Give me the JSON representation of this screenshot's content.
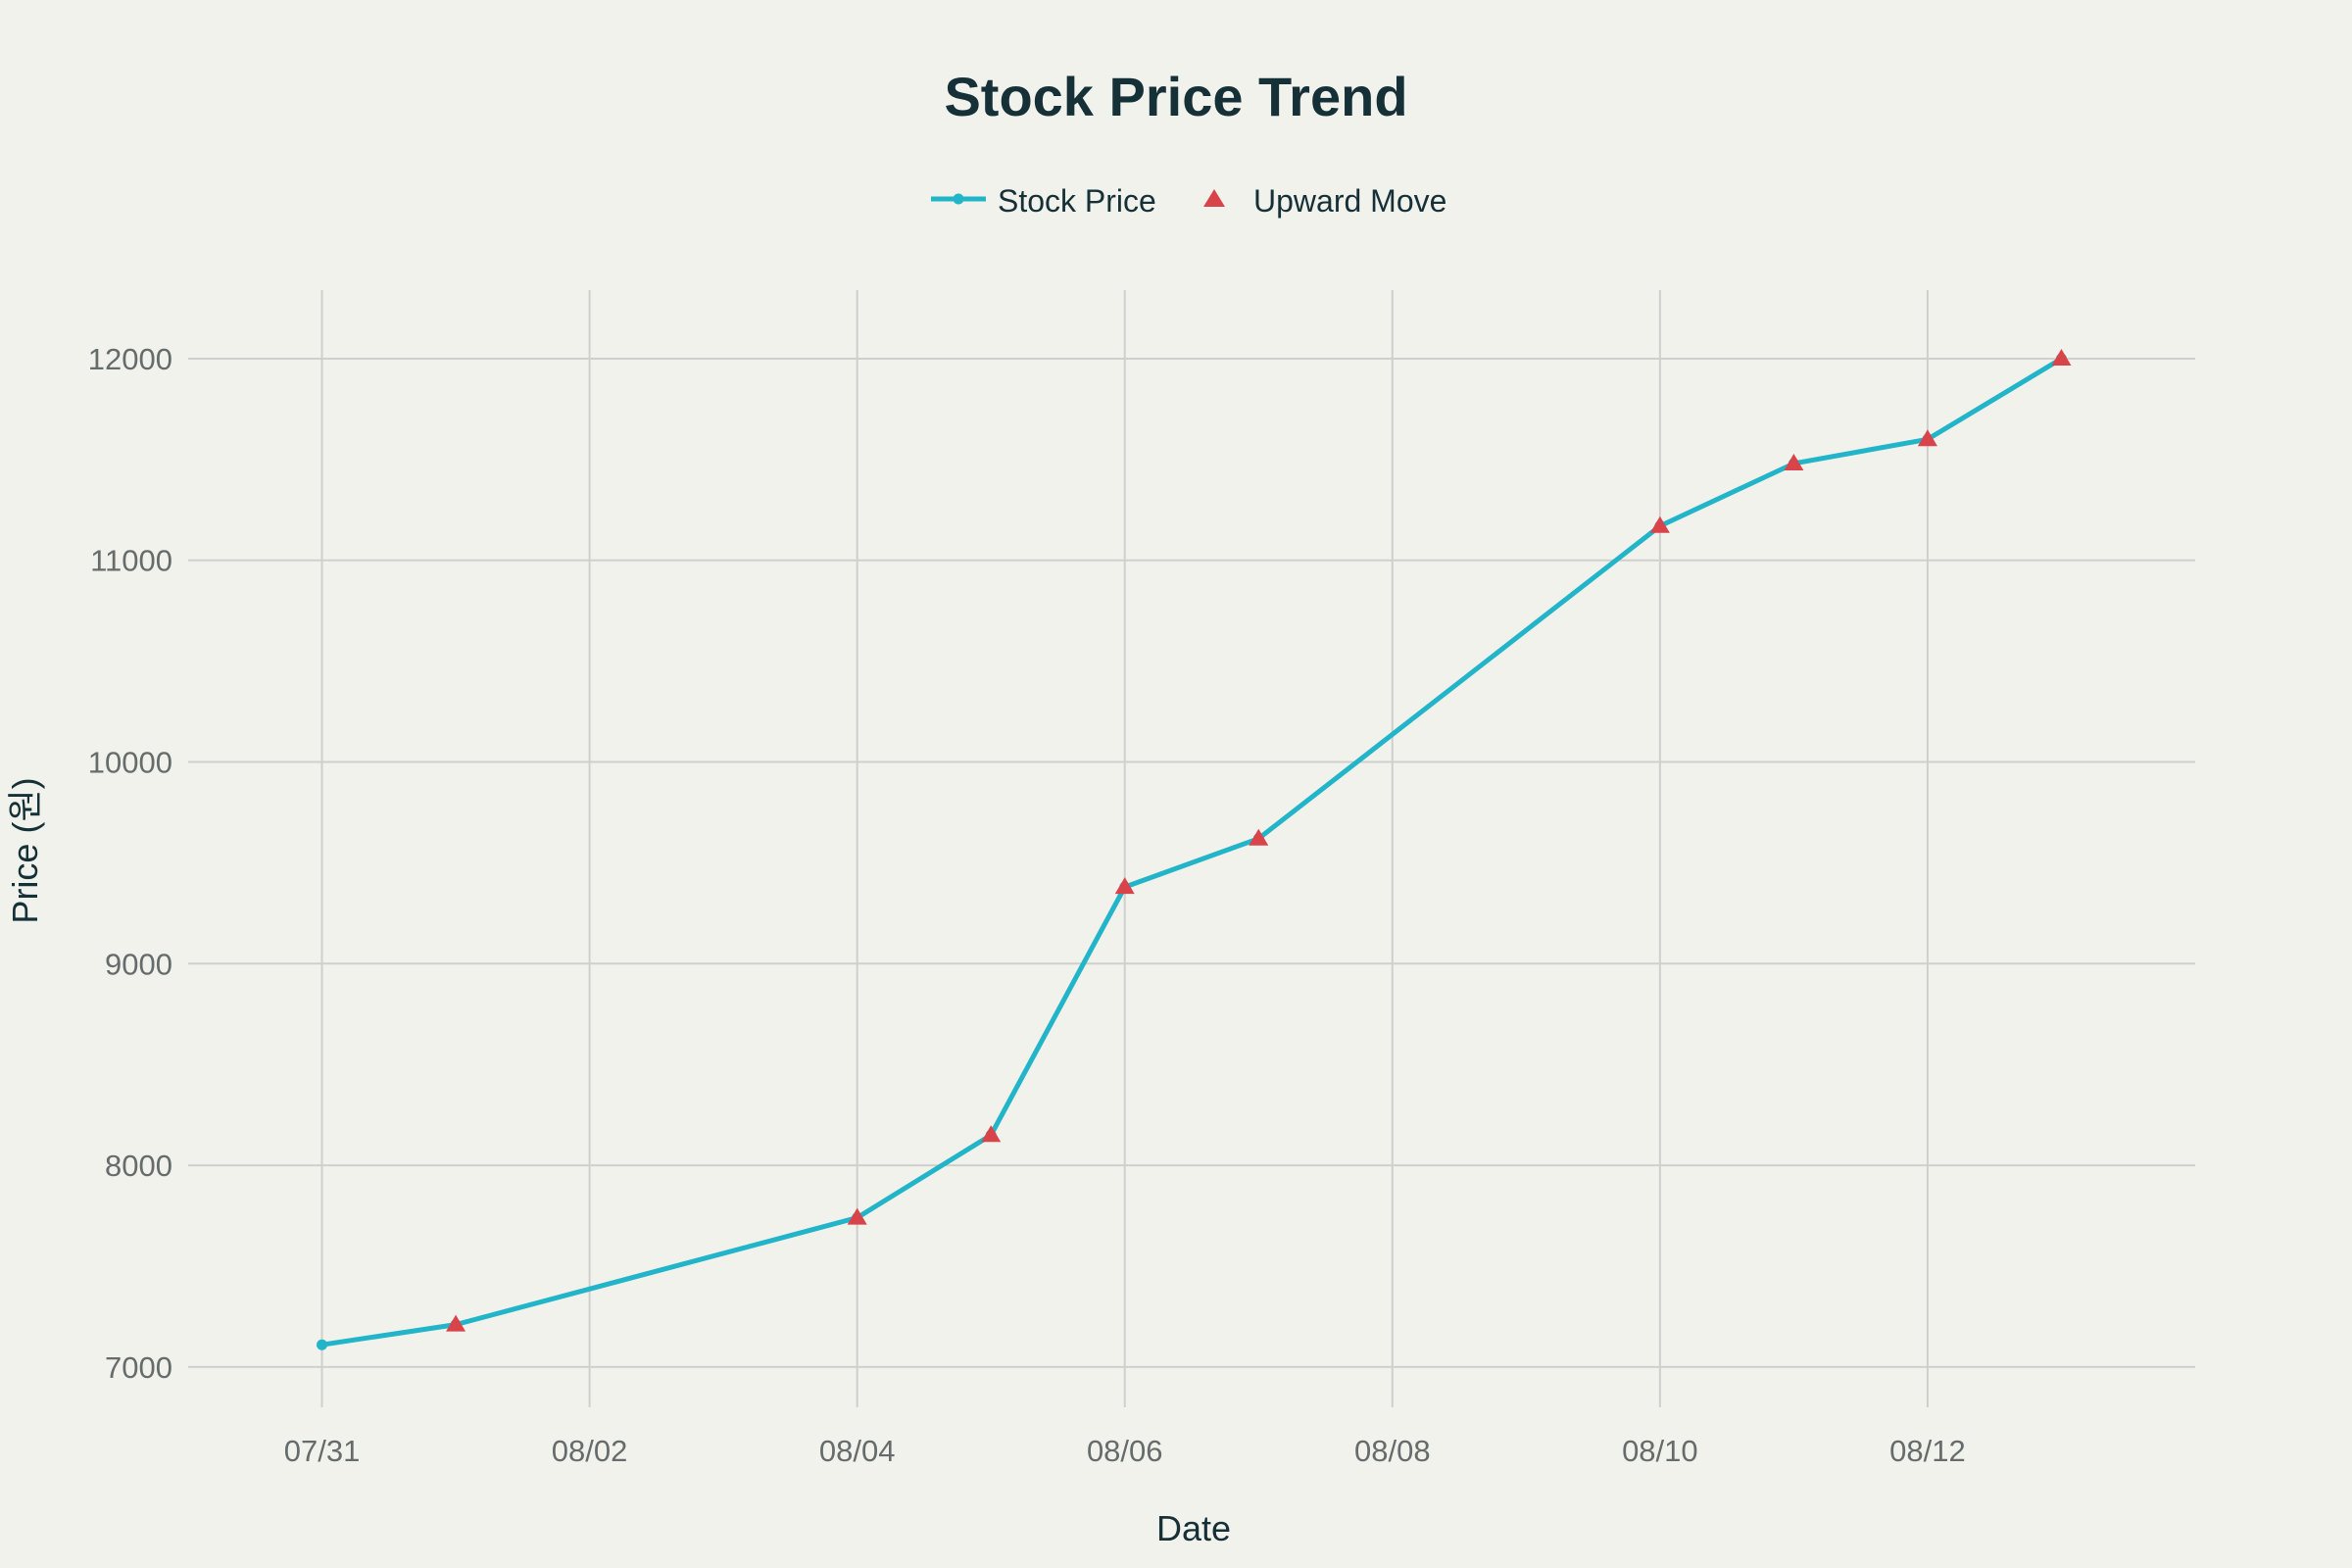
{
  "chart_data": {
    "type": "line",
    "title": "Stock Price Trend",
    "xlabel": "Date",
    "ylabel": "Price (원)",
    "x_ticks": [
      "07/31",
      "08/02",
      "08/04",
      "08/06",
      "08/08",
      "08/10",
      "08/12"
    ],
    "y_ticks": [
      7000,
      8000,
      9000,
      10000,
      11000,
      12000
    ],
    "xlim": [
      "07/30",
      "08/14"
    ],
    "ylim": [
      6800,
      12340
    ],
    "grid": true,
    "legend": "top-center",
    "series": [
      {
        "name": "Stock Price",
        "color": "#22b4c8",
        "marker": "circle",
        "points": [
          {
            "x": "07/31",
            "y": 7110
          },
          {
            "x": "08/01",
            "y": 7210
          },
          {
            "x": "08/04",
            "y": 7740
          },
          {
            "x": "08/05",
            "y": 8150
          },
          {
            "x": "08/06",
            "y": 9380
          },
          {
            "x": "08/07",
            "y": 9620
          },
          {
            "x": "08/10",
            "y": 11170
          },
          {
            "x": "08/11",
            "y": 11480
          },
          {
            "x": "08/12",
            "y": 11600
          },
          {
            "x": "08/13",
            "y": 12000
          }
        ]
      },
      {
        "name": "Upward Move",
        "color": "#d9434a",
        "marker": "triangle-up",
        "points": [
          {
            "x": "08/01",
            "y": 7210
          },
          {
            "x": "08/04",
            "y": 7740
          },
          {
            "x": "08/05",
            "y": 8150
          },
          {
            "x": "08/06",
            "y": 9380
          },
          {
            "x": "08/07",
            "y": 9620
          },
          {
            "x": "08/10",
            "y": 11170
          },
          {
            "x": "08/11",
            "y": 11480
          },
          {
            "x": "08/12",
            "y": 11600
          },
          {
            "x": "08/13",
            "y": 12000
          }
        ]
      }
    ]
  }
}
